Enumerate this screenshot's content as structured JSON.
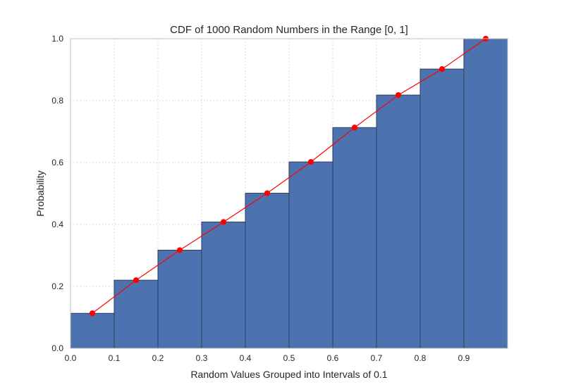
{
  "chart_data": {
    "type": "bar",
    "title": "CDF of 1000 Random Numbers in the Range [0, 1]",
    "xlabel": "Random Values Grouped into Intervals of 0.1",
    "ylabel": "Probability",
    "xlim": [
      0.0,
      1.0
    ],
    "ylim": [
      0.0,
      1.0
    ],
    "grid": true,
    "x_ticks": [
      "0.0",
      "0.1",
      "0.2",
      "0.3",
      "0.4",
      "0.5",
      "0.6",
      "0.7",
      "0.8",
      "0.9"
    ],
    "y_ticks": [
      "0.0",
      "0.2",
      "0.4",
      "0.6",
      "0.8",
      "1.0"
    ],
    "bins": [
      {
        "start": 0.0,
        "end": 0.1,
        "value": 0.113
      },
      {
        "start": 0.1,
        "end": 0.2,
        "value": 0.22
      },
      {
        "start": 0.2,
        "end": 0.3,
        "value": 0.317
      },
      {
        "start": 0.3,
        "end": 0.4,
        "value": 0.408
      },
      {
        "start": 0.4,
        "end": 0.5,
        "value": 0.501
      },
      {
        "start": 0.5,
        "end": 0.6,
        "value": 0.602
      },
      {
        "start": 0.6,
        "end": 0.7,
        "value": 0.713
      },
      {
        "start": 0.7,
        "end": 0.8,
        "value": 0.818
      },
      {
        "start": 0.8,
        "end": 0.9,
        "value": 0.902
      },
      {
        "start": 0.9,
        "end": 1.0,
        "value": 1.0
      }
    ],
    "line_series": {
      "x": [
        0.05,
        0.15,
        0.25,
        0.35,
        0.45,
        0.55,
        0.65,
        0.75,
        0.85,
        0.95
      ],
      "y": [
        0.113,
        0.22,
        0.317,
        0.408,
        0.501,
        0.602,
        0.713,
        0.818,
        0.902,
        1.0
      ]
    },
    "colors": {
      "bar_fill": "#4c72b0",
      "bar_edge": "#2f3f5c",
      "line": "#ff0000",
      "marker": "#ff0000",
      "grid": "#cfcfcf",
      "axes_edge": "#bfbfbf"
    }
  }
}
